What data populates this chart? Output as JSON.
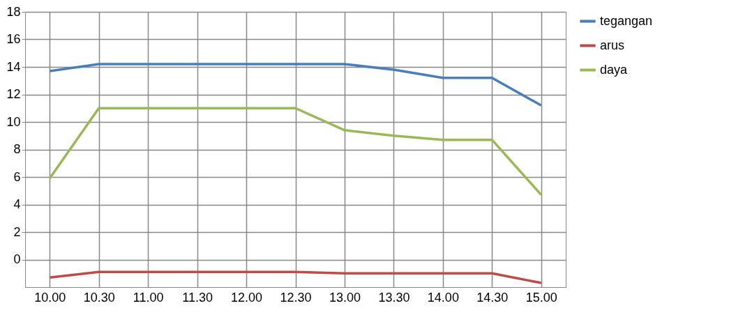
{
  "chart_data": {
    "type": "line",
    "categories": [
      "10.00",
      "10.30",
      "11.00",
      "11.30",
      "12.00",
      "12.30",
      "13.00",
      "13.30",
      "14.00",
      "14.30",
      "15.00"
    ],
    "series": [
      {
        "name": "tegangan",
        "color": "#4a7ebb",
        "values": [
          13.7,
          14.2,
          14.2,
          14.2,
          14.2,
          14.2,
          14.2,
          13.8,
          13.2,
          13.2,
          11.2
        ]
      },
      {
        "name": "arus",
        "color": "#be4b48",
        "values": [
          -1.3,
          -0.9,
          -0.9,
          -0.9,
          -0.9,
          -0.9,
          -1.0,
          -1.0,
          -1.0,
          -1.0,
          -1.7
        ]
      },
      {
        "name": "daya",
        "color": "#98b954",
        "values": [
          5.9,
          11.0,
          11.0,
          11.0,
          11.0,
          11.0,
          9.4,
          9.0,
          8.7,
          8.7,
          4.7
        ]
      }
    ],
    "ylim": [
      -2,
      18
    ],
    "yticks": [
      0,
      2,
      4,
      6,
      8,
      10,
      12,
      14,
      16,
      18
    ],
    "grid": true,
    "legend": "right",
    "marker": "none",
    "line_style": "solid"
  }
}
